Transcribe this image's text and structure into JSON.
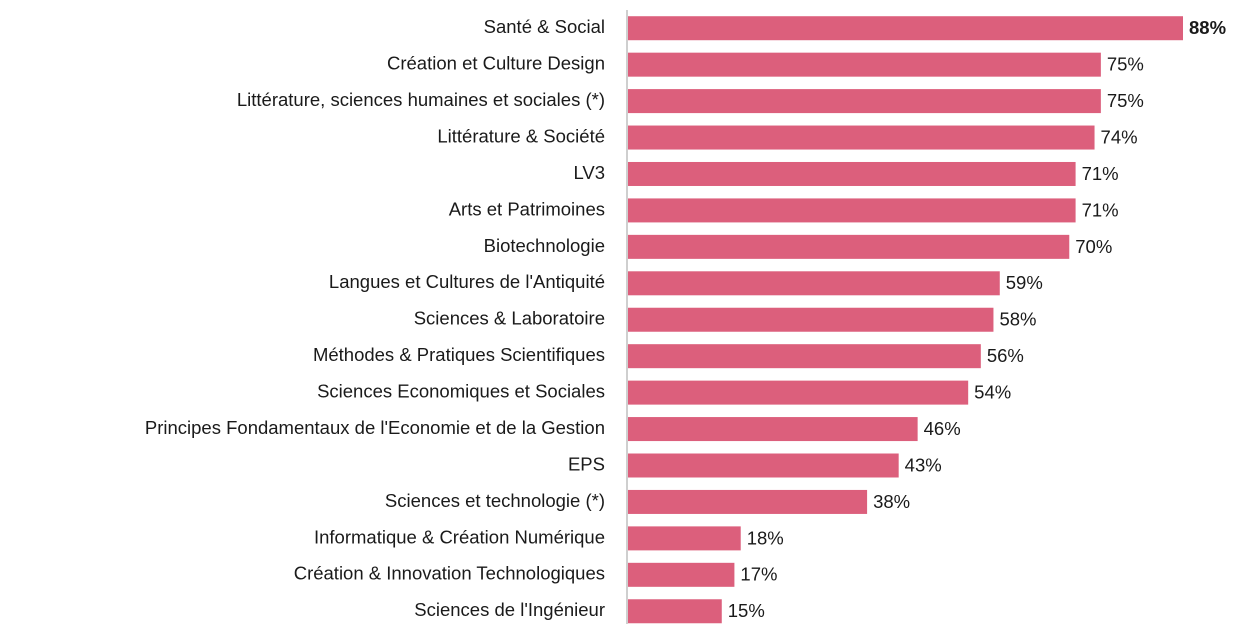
{
  "chart_data": {
    "type": "barh",
    "categories": [
      "Santé & Social",
      "Création et Culture Design",
      "Littérature, sciences humaines et sociales (*)",
      "Littérature & Société",
      "LV3",
      "Arts et Patrimoines",
      "Biotechnologie",
      "Langues et Cultures de l'Antiquité",
      "Sciences & Laboratoire",
      "Méthodes & Pratiques Scientifiques",
      "Sciences Economiques et Sociales",
      "Principes Fondamentaux de l'Economie et de la Gestion",
      "EPS",
      "Sciences et technologie (*)",
      "Informatique & Création Numérique",
      "Création & Innovation Technologiques",
      "Sciences de l'Ingénieur"
    ],
    "values": [
      88,
      75,
      75,
      74,
      71,
      71,
      70,
      59,
      58,
      56,
      54,
      46,
      43,
      38,
      18,
      17,
      15
    ],
    "value_labels": [
      "88%",
      "75%",
      "75%",
      "74%",
      "71%",
      "71%",
      "70%",
      "59%",
      "58%",
      "56%",
      "54%",
      "46%",
      "43%",
      "38%",
      "18%",
      "17%",
      "15%"
    ],
    "color": "#dc5f7c"
  }
}
